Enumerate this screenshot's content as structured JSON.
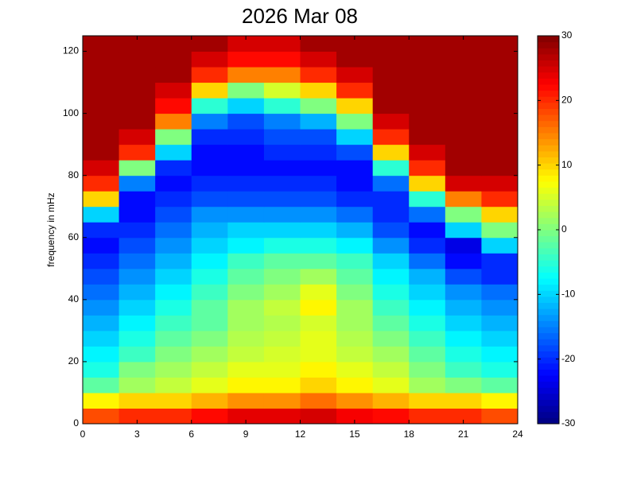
{
  "chart_data": {
    "type": "heatmap",
    "title": "2026 Mar 08",
    "ylabel": "frequency in mHz",
    "colormap": "jet",
    "x_edges": [
      0,
      2,
      4,
      6,
      8,
      10,
      12,
      14,
      16,
      18,
      20,
      22,
      24
    ],
    "y_edges": [
      0,
      5,
      10,
      15,
      20,
      25,
      30,
      35,
      40,
      45,
      50,
      55,
      60,
      65,
      70,
      75,
      80,
      85,
      90,
      95,
      100,
      105,
      110,
      115,
      120,
      125
    ],
    "z": [
      [
        18,
        20,
        20,
        22,
        24,
        24,
        25,
        23,
        22,
        20,
        20,
        18
      ],
      [
        8,
        10,
        10,
        12,
        14,
        14,
        16,
        14,
        12,
        10,
        10,
        8
      ],
      [
        -2,
        2,
        4,
        6,
        8,
        8,
        10,
        8,
        6,
        2,
        0,
        -2
      ],
      [
        -6,
        0,
        2,
        4,
        6,
        6,
        8,
        6,
        4,
        0,
        -4,
        -6
      ],
      [
        -8,
        -4,
        0,
        2,
        4,
        5,
        6,
        4,
        2,
        -2,
        -6,
        -8
      ],
      [
        -10,
        -6,
        -2,
        0,
        3,
        4,
        6,
        3,
        0,
        -4,
        -8,
        -10
      ],
      [
        -12,
        -8,
        -4,
        -2,
        2,
        3,
        5,
        2,
        -2,
        -6,
        -10,
        -12
      ],
      [
        -14,
        -10,
        -6,
        -2,
        2,
        4,
        8,
        2,
        -4,
        -8,
        -12,
        -14
      ],
      [
        -16,
        -12,
        -8,
        -4,
        0,
        2,
        6,
        0,
        -6,
        -10,
        -14,
        -16
      ],
      [
        -18,
        -14,
        -10,
        -6,
        -2,
        0,
        2,
        -2,
        -8,
        -12,
        -18,
        -20
      ],
      [
        -20,
        -16,
        -12,
        -8,
        -4,
        -2,
        -2,
        -4,
        -10,
        -16,
        -22,
        -20
      ],
      [
        -22,
        -18,
        -14,
        -10,
        -8,
        -6,
        -6,
        -8,
        -14,
        -20,
        -24,
        -10
      ],
      [
        -20,
        -20,
        -16,
        -12,
        -10,
        -10,
        -10,
        -12,
        -18,
        -22,
        -10,
        0
      ],
      [
        -10,
        -22,
        -18,
        -14,
        -14,
        -14,
        -14,
        -16,
        -20,
        -16,
        0,
        10
      ],
      [
        10,
        -22,
        -20,
        -18,
        -18,
        -18,
        -18,
        -20,
        -20,
        -5,
        15,
        20
      ],
      [
        20,
        -15,
        -22,
        -20,
        -20,
        -20,
        -20,
        -22,
        -16,
        10,
        25,
        25
      ],
      [
        25,
        0,
        -20,
        -22,
        -22,
        -22,
        -22,
        -22,
        -5,
        20,
        28,
        28
      ],
      [
        28,
        20,
        -10,
        -22,
        -22,
        -20,
        -20,
        -18,
        10,
        25,
        28,
        28
      ],
      [
        28,
        25,
        0,
        -20,
        -20,
        -18,
        -18,
        -10,
        20,
        28,
        28,
        28
      ],
      [
        28,
        28,
        15,
        -15,
        -18,
        -15,
        -12,
        0,
        25,
        28,
        28,
        28
      ],
      [
        28,
        28,
        22,
        -5,
        -10,
        -5,
        0,
        10,
        28,
        28,
        28,
        28
      ],
      [
        28,
        28,
        25,
        10,
        0,
        5,
        10,
        20,
        28,
        28,
        28,
        28
      ],
      [
        28,
        28,
        28,
        20,
        15,
        15,
        20,
        25,
        28,
        28,
        28,
        28
      ],
      [
        28,
        28,
        28,
        25,
        22,
        22,
        25,
        28,
        28,
        28,
        28,
        28
      ],
      [
        28,
        28,
        28,
        28,
        25,
        25,
        28,
        28,
        28,
        28,
        28,
        28
      ]
    ],
    "xlim": [
      0,
      24
    ],
    "xticks": [
      0,
      3,
      6,
      9,
      12,
      15,
      18,
      21,
      24
    ],
    "ylim": [
      0,
      125
    ],
    "yticks": [
      0,
      20,
      40,
      60,
      80,
      100,
      120
    ],
    "clim": [
      -30,
      30
    ],
    "cticks": [
      -30,
      -20,
      -10,
      0,
      10,
      20,
      30
    ]
  }
}
